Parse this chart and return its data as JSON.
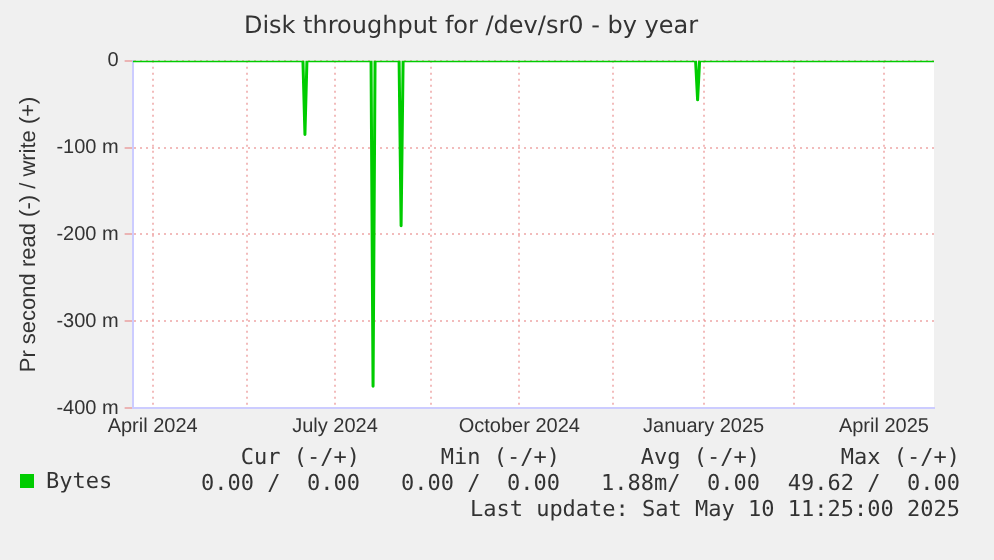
{
  "chart_data": {
    "type": "line",
    "title": "Disk throughput for /dev/sr0 - by year",
    "ylabel": "Pr second read (-) / write (+)",
    "x": [
      "2024-04-05",
      "2024-06-29",
      "2024-06-30",
      "2024-07-01",
      "2024-08-02",
      "2024-08-03",
      "2024-08-04",
      "2024-08-16",
      "2024-08-17",
      "2024-08-18",
      "2025-01-11",
      "2025-01-12",
      "2025-01-13",
      "2025-05-10"
    ],
    "series": [
      {
        "name": "Bytes",
        "color": "#00cc00",
        "values": [
          0,
          0,
          -85,
          0,
          0,
          -375,
          0,
          0,
          -190,
          0,
          0,
          -45,
          0,
          0
        ]
      }
    ],
    "xlim": [
      "2024-04-05",
      "2025-05-10"
    ],
    "xticks": [
      {
        "value": "2024-04-15",
        "label": "April 2024"
      },
      {
        "value": "2024-06-01",
        "label": null
      },
      {
        "value": "2024-07-15",
        "label": "July 2024"
      },
      {
        "value": "2024-09-01",
        "label": null
      },
      {
        "value": "2024-10-15",
        "label": "October 2024"
      },
      {
        "value": "2024-12-01",
        "label": null
      },
      {
        "value": "2025-01-15",
        "label": "January 2025"
      },
      {
        "value": "2025-03-01",
        "label": null
      },
      {
        "value": "2025-04-15",
        "label": "April 2025"
      }
    ],
    "ylim": [
      -400,
      0
    ],
    "yticks": [
      {
        "value": -400,
        "label": "-400 m"
      },
      {
        "value": -300,
        "label": "-300 m"
      },
      {
        "value": -200,
        "label": "-200 m"
      },
      {
        "value": -100,
        "label": "-100 m"
      },
      0
    ],
    "grid": true,
    "legend": "bottom",
    "marker": "none",
    "line_style": "solid",
    "annotations": [
      "Cur (-/+)",
      "Min (-/+)",
      "Avg (-/+)",
      "Max (-/+)",
      "0.00 /  0.00",
      "0.00 /  0.00",
      "1.88m/  0.00",
      "49.62 /  0.00",
      "Last update: Sat May 10 11:25:00 2025"
    ]
  }
}
